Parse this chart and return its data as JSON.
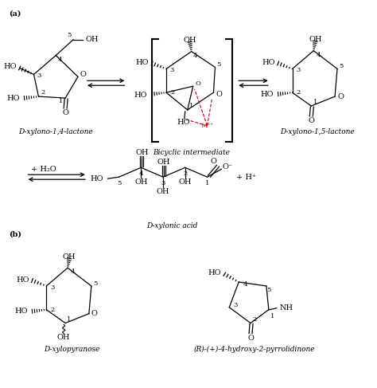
{
  "background_color": "#ffffff",
  "label_a": "(a)",
  "label_b": "(b)",
  "label_14lactone": "D-xylono-1,4-lactone",
  "label_bicyclic": "Bicyclic intermediate",
  "label_15lactone": "D-xylono-1,5-lactone",
  "label_xylonic": "D-xylonic acid",
  "label_xylopyranose": "D-xylopyranose",
  "label_pyrrolidinone": "(R)-(+)-4-hydroxy-2-pyrrolidinone",
  "label_water": "+ H₂O",
  "label_hplus": "+ H⁺",
  "text_color": "#000000",
  "red_color": "#cc0000",
  "figsize": [
    4.74,
    4.87
  ],
  "dpi": 100
}
